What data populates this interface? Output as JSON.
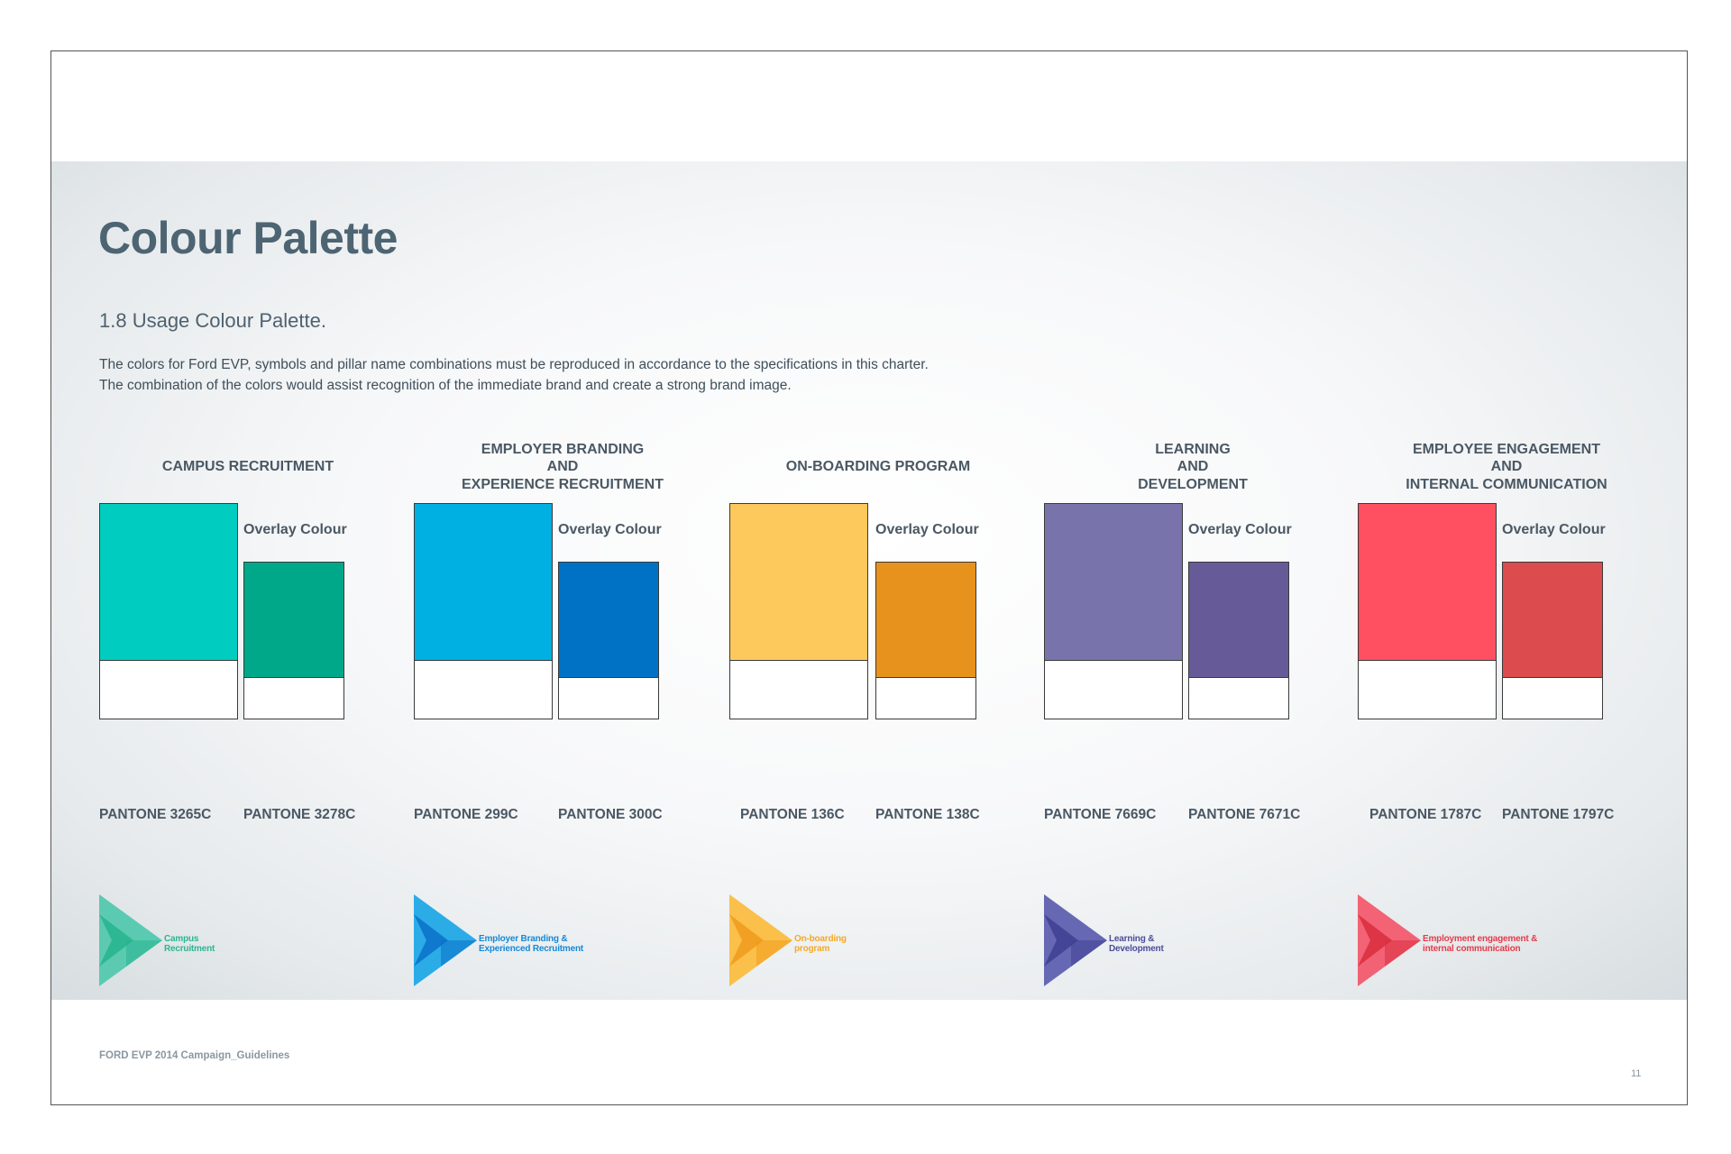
{
  "page": {
    "title": "Colour Palette",
    "subtitle": "1.8 Usage Colour Palette.",
    "description": [
      "The colors for Ford EVP, symbols and pillar name combinations must be reproduced in accordance to the specifications in this charter.",
      "The combination of the colors would assist recognition of the immediate brand and create a strong brand image."
    ],
    "footer": "FORD EVP 2014 Campaign_Guidelines",
    "page_number": "11"
  },
  "overlay_label": "Overlay Colour",
  "pillars": [
    {
      "heading": "CAMPUS RECRUITMENT",
      "main_color": "#00cdbf",
      "overlay_color": "#00a88a",
      "main_pantone": "PANTONE 3265C",
      "overlay_pantone": "PANTONE 3278C",
      "logo_text": "Campus\nRecruitment",
      "logo_color_light": "#4fc8ad",
      "logo_color_dark": "#27b48e",
      "logo_text_color": "#2cb592"
    },
    {
      "heading": "EMPLOYER BRANDING\nAND\nEXPERIENCE RECRUITMENT",
      "main_color": "#00b0e2",
      "overlay_color": "#0072c6",
      "main_pantone": "PANTONE  299C",
      "overlay_pantone": "PANTONE  300C",
      "logo_text": "Employer Branding &\nExperienced Recruitment",
      "logo_color_light": "#1aa6e6",
      "logo_color_dark": "#0a70c8",
      "logo_text_color": "#1589d6"
    },
    {
      "heading": "ON-BOARDING PROGRAM",
      "main_color": "#fdc95c",
      "overlay_color": "#e8921e",
      "main_pantone": "PANTONE 136C",
      "overlay_pantone": "PANTONE 138C",
      "logo_text": "On-boarding\nprogram",
      "logo_color_light": "#fbbc3c",
      "logo_color_dark": "#f09a1c",
      "logo_text_color": "#f4a92a"
    },
    {
      "heading": "LEARNING\nAND\nDEVELOPMENT",
      "main_color": "#7874ab",
      "overlay_color": "#665a99",
      "main_pantone": "PANTONE 7669C",
      "overlay_pantone": "PANTONE 7671C",
      "logo_text": "Learning &\nDevelopment",
      "logo_color_light": "#5a5cae",
      "logo_color_dark": "#3f3f92",
      "logo_text_color": "#4b4c9c"
    },
    {
      "heading": "EMPLOYEE ENGAGEMENT\nAND\nINTERNAL COMMUNICATION",
      "main_color": "#fe5060",
      "overlay_color": "#dc4b4d",
      "main_pantone": "PANTONE 1787C",
      "overlay_pantone": "PANTONE 1797C",
      "logo_text": "Employment engagement &\ninternal communication",
      "logo_color_light": "#f3566a",
      "logo_color_dark": "#d82e3e",
      "logo_text_color": "#e63a4a"
    }
  ]
}
